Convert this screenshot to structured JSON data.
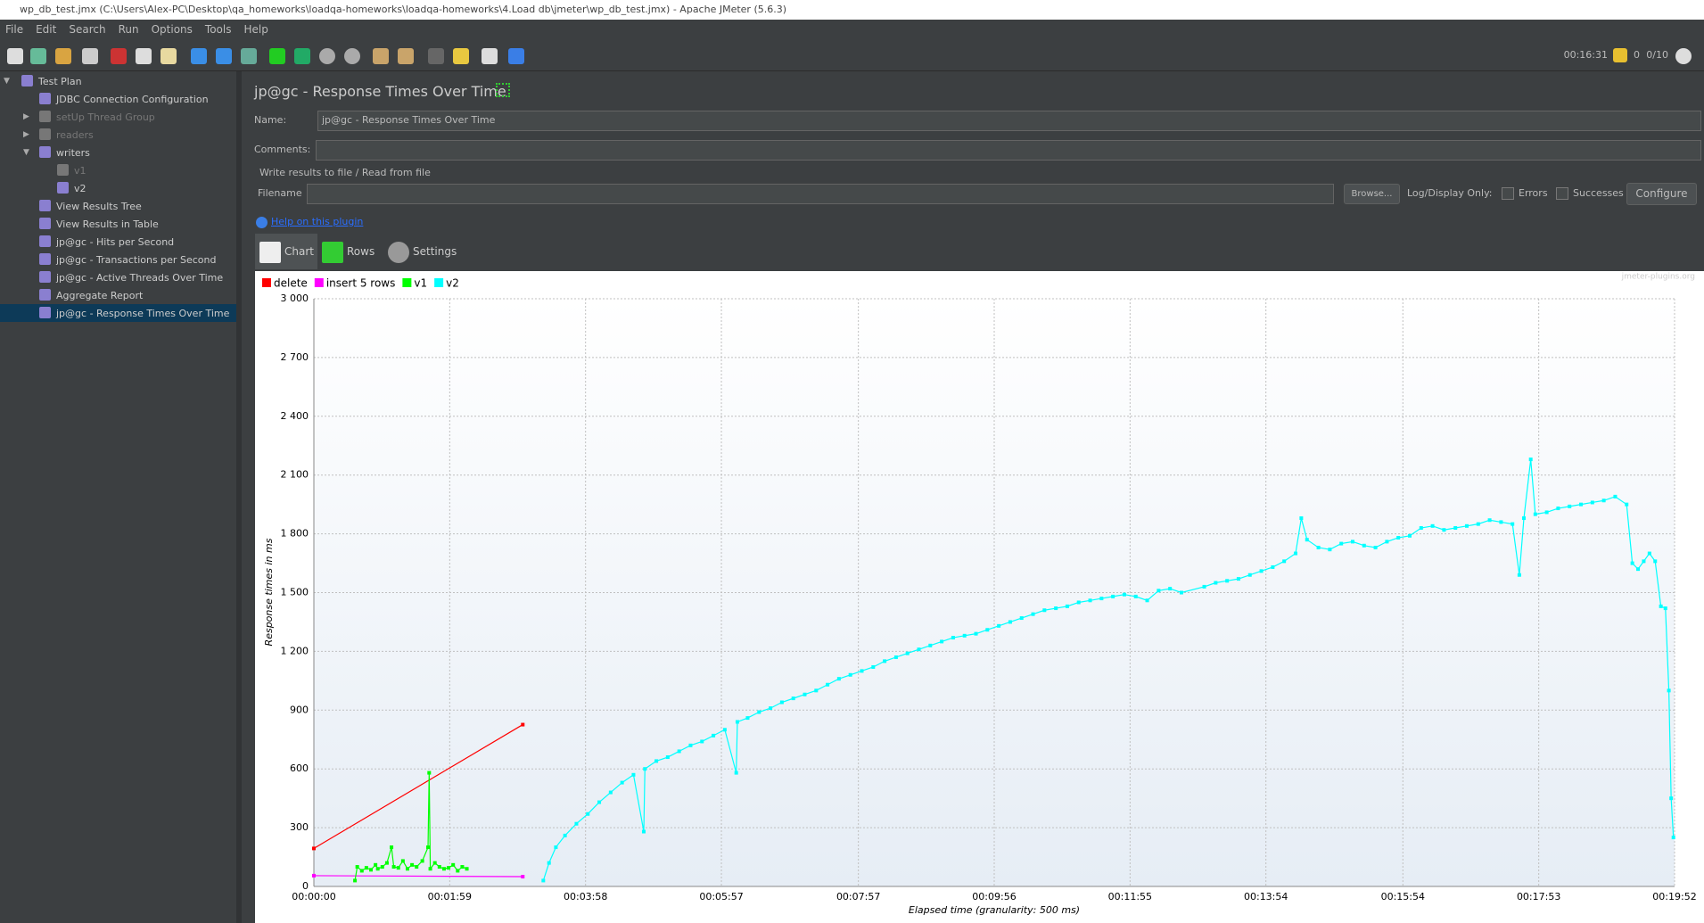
{
  "window": {
    "title": "wp_db_test.jmx (C:\\Users\\Alex-PC\\Desktop\\qa_homeworks\\loadqa-homeworks\\loadqa-homeworks\\4.Load db\\jmeter\\wp_db_test.jmx) - Apache JMeter (5.6.3)"
  },
  "menu": [
    "File",
    "Edit",
    "Search",
    "Run",
    "Options",
    "Tools",
    "Help"
  ],
  "status": {
    "elapsed": "00:16:31",
    "warnings": "0",
    "threads": "0/10"
  },
  "tree": {
    "label": "Test Plan",
    "expanded": true,
    "children": [
      {
        "label": "JDBC Connection Configuration"
      },
      {
        "label": "setUp Thread Group",
        "expanded": false,
        "enabled": false
      },
      {
        "label": "readers",
        "expanded": false,
        "enabled": false
      },
      {
        "label": "writers",
        "expanded": true,
        "children": [
          {
            "label": "v1",
            "enabled": false
          },
          {
            "label": "v2"
          }
        ]
      },
      {
        "label": "View Results Tree"
      },
      {
        "label": "View Results in Table"
      },
      {
        "label": "jp@gc - Hits per Second"
      },
      {
        "label": "jp@gc - Transactions per Second"
      },
      {
        "label": "jp@gc - Active Threads Over Time"
      },
      {
        "label": "Aggregate Report"
      },
      {
        "label": "jp@gc - Response Times Over Time",
        "selected": true
      }
    ]
  },
  "panel": {
    "title": "jp@gc - Response Times Over Time",
    "name_label": "Name:",
    "name_value": "jp@gc - Response Times Over Time",
    "comments_label": "Comments:",
    "file_section": "Write results to file / Read from file",
    "filename_label": "Filename",
    "browse": "Browse...",
    "log_display": "Log/Display Only:",
    "errors": "Errors",
    "successes": "Successes",
    "configure": "Configure",
    "help_link": "Help on this plugin",
    "tabs": [
      "Chart",
      "Rows",
      "Settings"
    ]
  },
  "chart_data": {
    "type": "line",
    "watermark": "jmeter-plugins.org",
    "ylabel": "Response times in ms",
    "xlabel": "Elapsed time (granularity: 500 ms)",
    "xlim": [
      0,
      1192
    ],
    "ylim": [
      0,
      3000
    ],
    "grid": true,
    "xticks": [
      {
        "value": 0,
        "label": "00:00:00"
      },
      {
        "value": 119,
        "label": "00:01:59"
      },
      {
        "value": 238,
        "label": "00:03:58"
      },
      {
        "value": 357,
        "label": "00:05:57"
      },
      {
        "value": 477,
        "label": "00:07:57"
      },
      {
        "value": 596,
        "label": "00:09:56"
      },
      {
        "value": 715,
        "label": "00:11:55"
      },
      {
        "value": 834,
        "label": "00:13:54"
      },
      {
        "value": 954,
        "label": "00:15:54"
      },
      {
        "value": 1073,
        "label": "00:17:53"
      },
      {
        "value": 1192,
        "label": "00:19:52"
      }
    ],
    "yticks": [
      0,
      300,
      600,
      900,
      {
        "value": 1200,
        "label": "1 200"
      },
      {
        "value": 1500,
        "label": "1 500"
      },
      {
        "value": 1800,
        "label": "1 800"
      },
      {
        "value": 2100,
        "label": "2 100"
      },
      {
        "value": 2400,
        "label": "2 400"
      },
      {
        "value": 2700,
        "label": "2 700"
      },
      {
        "value": 3000,
        "label": "3 000"
      }
    ],
    "series": [
      {
        "name": "delete",
        "color": "#ff0000",
        "x": [
          0,
          183
        ],
        "values": [
          194,
          826
        ]
      },
      {
        "name": "insert 5 rows",
        "color": "#ff00ff",
        "x": [
          0,
          183
        ],
        "values": [
          55,
          50
        ]
      },
      {
        "name": "v1",
        "color": "#00ff00",
        "x": [
          36,
          38,
          42,
          46,
          50,
          54,
          56,
          60,
          64,
          68,
          70,
          74,
          78,
          82,
          86,
          90,
          95,
          100,
          101,
          102,
          106,
          110,
          114,
          118,
          122,
          126,
          130,
          134
        ],
        "values": [
          30,
          100,
          80,
          95,
          85,
          110,
          90,
          100,
          120,
          200,
          100,
          95,
          130,
          90,
          110,
          100,
          130,
          200,
          580,
          90,
          120,
          100,
          90,
          95,
          110,
          80,
          100,
          90
        ]
      },
      {
        "name": "v2",
        "color": "#00ffff",
        "x": [
          201,
          206,
          212,
          220,
          230,
          240,
          250,
          260,
          270,
          280,
          289,
          290,
          300,
          310,
          320,
          330,
          340,
          350,
          360,
          370,
          371,
          380,
          390,
          400,
          410,
          420,
          430,
          440,
          450,
          460,
          470,
          480,
          490,
          500,
          510,
          520,
          530,
          540,
          550,
          560,
          570,
          580,
          590,
          600,
          610,
          620,
          630,
          640,
          650,
          660,
          670,
          680,
          690,
          700,
          710,
          720,
          730,
          740,
          750,
          760,
          780,
          790,
          800,
          810,
          820,
          830,
          840,
          850,
          860,
          865,
          870,
          880,
          890,
          900,
          910,
          920,
          930,
          940,
          950,
          960,
          970,
          980,
          990,
          1000,
          1010,
          1020,
          1030,
          1040,
          1050,
          1056,
          1060,
          1066,
          1070,
          1080,
          1090,
          1100,
          1110,
          1120,
          1130,
          1140,
          1150,
          1155,
          1160,
          1165,
          1170,
          1175,
          1180,
          1184,
          1187,
          1189,
          1191
        ],
        "values": [
          30,
          120,
          200,
          260,
          320,
          370,
          430,
          480,
          530,
          570,
          280,
          600,
          640,
          660,
          690,
          720,
          740,
          770,
          800,
          580,
          840,
          860,
          890,
          910,
          940,
          960,
          980,
          1000,
          1030,
          1060,
          1080,
          1100,
          1120,
          1150,
          1170,
          1190,
          1210,
          1230,
          1250,
          1270,
          1280,
          1290,
          1310,
          1330,
          1350,
          1370,
          1390,
          1410,
          1420,
          1430,
          1450,
          1460,
          1470,
          1480,
          1490,
          1480,
          1460,
          1510,
          1520,
          1500,
          1530,
          1550,
          1560,
          1570,
          1590,
          1610,
          1630,
          1660,
          1700,
          1880,
          1770,
          1730,
          1720,
          1750,
          1760,
          1740,
          1730,
          1760,
          1780,
          1790,
          1830,
          1840,
          1820,
          1830,
          1840,
          1850,
          1870,
          1860,
          1850,
          1590,
          1880,
          2180,
          1900,
          1910,
          1930,
          1940,
          1950,
          1960,
          1970,
          1990,
          1950,
          1650,
          1620,
          1660,
          1700,
          1660,
          1430,
          1420,
          1000,
          450,
          250
        ]
      }
    ]
  }
}
